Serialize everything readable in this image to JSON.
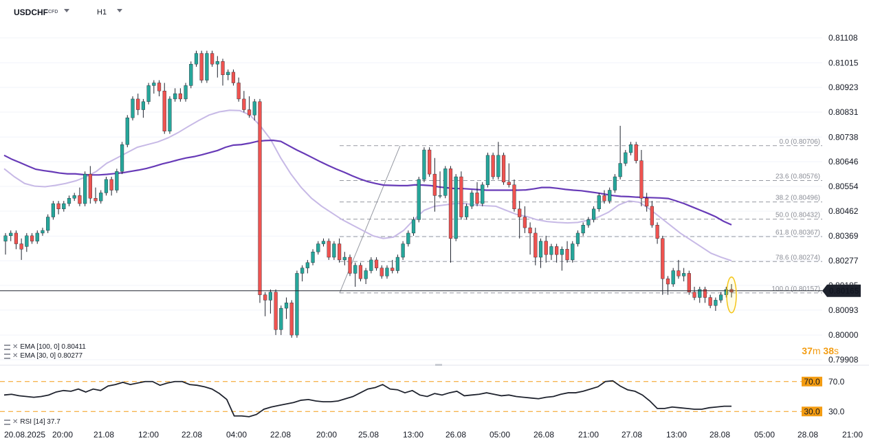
{
  "header": {
    "symbol": "USDCHF",
    "symbol_type": "CFD",
    "timeframe": "H1"
  },
  "colors": {
    "up": "#26a69a",
    "down": "#ef5350",
    "ema100": "#673ab7",
    "ema30": "#c7b9e6",
    "fib": "#9598a1",
    "rsi_line": "#1e222d",
    "rsi_levels": "#f39c12",
    "price_badge": "#1e222d"
  },
  "price_axis": {
    "labels": [
      "0.81108",
      "0.81015",
      "0.80923",
      "0.80831",
      "0.80738",
      "0.80646",
      "0.80554",
      "0.80462",
      "0.80369",
      "0.80277",
      "0.80185",
      "0.80093",
      "0.80000",
      "0.79908"
    ],
    "current_price": "0.80165"
  },
  "time_axis": {
    "labels": [
      "20.08.2025",
      "20:00",
      "21.08",
      "12:00",
      "22.08",
      "04:00",
      "22.08",
      "20:00",
      "25.08",
      "13:00",
      "26.08",
      "05:00",
      "26.08",
      "21:00",
      "27.08",
      "13:00",
      "28.08",
      "05:00",
      "28.08",
      "21:00"
    ]
  },
  "legend": {
    "ema100": "EMA  [100,  0]  0.80411",
    "ema30": "EMA  [30,  0]  0.80277",
    "rsi": "RSI  [14]  37.7"
  },
  "timer": {
    "minutes": "37",
    "m": "m",
    "seconds": "38",
    "s": "s"
  },
  "rsi_axis": {
    "level_high": "70.0",
    "level_low": "30.0"
  },
  "fib_levels": [
    {
      "label": "0.0 (0.80706)",
      "price": 0.80706
    },
    {
      "label": "23.6 (0.80576)",
      "price": 0.80576
    },
    {
      "label": "38.2 (0.80496)",
      "price": 0.80496
    },
    {
      "label": "50.0 (0.80432)",
      "price": 0.80432
    },
    {
      "label": "61.8 (0.80367)",
      "price": 0.80367
    },
    {
      "label": "78.6 (0.80274)",
      "price": 0.80274
    },
    {
      "label": "100.0 (0.80157)",
      "price": 0.80157
    }
  ],
  "chart_data": {
    "type": "candlestick",
    "symbol": "USDCHF",
    "timeframe": "H1",
    "ylim": [
      0.79908,
      0.81108
    ],
    "rsi_ylim": [
      10,
      90
    ],
    "candles": [
      {
        "o": 0.8035,
        "h": 0.8038,
        "l": 0.803,
        "c": 0.8037
      },
      {
        "o": 0.8037,
        "h": 0.8039,
        "l": 0.8035,
        "c": 0.8038
      },
      {
        "o": 0.8038,
        "h": 0.8039,
        "l": 0.8032,
        "c": 0.8034
      },
      {
        "o": 0.8034,
        "h": 0.8036,
        "l": 0.8028,
        "c": 0.8032
      },
      {
        "o": 0.8033,
        "h": 0.8038,
        "l": 0.8031,
        "c": 0.8037
      },
      {
        "o": 0.8037,
        "h": 0.8038,
        "l": 0.8034,
        "c": 0.8035
      },
      {
        "o": 0.8035,
        "h": 0.8039,
        "l": 0.8034,
        "c": 0.8038
      },
      {
        "o": 0.8038,
        "h": 0.804,
        "l": 0.8037,
        "c": 0.8039
      },
      {
        "o": 0.8039,
        "h": 0.8045,
        "l": 0.8038,
        "c": 0.8044
      },
      {
        "o": 0.8044,
        "h": 0.805,
        "l": 0.8043,
        "c": 0.8049
      },
      {
        "o": 0.8049,
        "h": 0.805,
        "l": 0.8045,
        "c": 0.8047
      },
      {
        "o": 0.8047,
        "h": 0.805,
        "l": 0.8046,
        "c": 0.8049
      },
      {
        "o": 0.8049,
        "h": 0.8052,
        "l": 0.8048,
        "c": 0.8051
      },
      {
        "o": 0.8051,
        "h": 0.8053,
        "l": 0.805,
        "c": 0.8052
      },
      {
        "o": 0.8052,
        "h": 0.8055,
        "l": 0.8048,
        "c": 0.8049
      },
      {
        "o": 0.8049,
        "h": 0.8061,
        "l": 0.8048,
        "c": 0.806
      },
      {
        "o": 0.806,
        "h": 0.8063,
        "l": 0.8049,
        "c": 0.8051
      },
      {
        "o": 0.8051,
        "h": 0.8055,
        "l": 0.8049,
        "c": 0.805
      },
      {
        "o": 0.805,
        "h": 0.8054,
        "l": 0.8049,
        "c": 0.8053
      },
      {
        "o": 0.8053,
        "h": 0.8059,
        "l": 0.8052,
        "c": 0.8058
      },
      {
        "o": 0.8058,
        "h": 0.8059,
        "l": 0.8052,
        "c": 0.8054
      },
      {
        "o": 0.8054,
        "h": 0.8062,
        "l": 0.8053,
        "c": 0.8061
      },
      {
        "o": 0.8061,
        "h": 0.8072,
        "l": 0.806,
        "c": 0.8071
      },
      {
        "o": 0.8071,
        "h": 0.8082,
        "l": 0.807,
        "c": 0.8081
      },
      {
        "o": 0.8081,
        "h": 0.8089,
        "l": 0.808,
        "c": 0.8088
      },
      {
        "o": 0.8088,
        "h": 0.809,
        "l": 0.8082,
        "c": 0.8084
      },
      {
        "o": 0.8084,
        "h": 0.8088,
        "l": 0.8081,
        "c": 0.8087
      },
      {
        "o": 0.8087,
        "h": 0.8094,
        "l": 0.8086,
        "c": 0.8093
      },
      {
        "o": 0.8093,
        "h": 0.8095,
        "l": 0.809,
        "c": 0.8094
      },
      {
        "o": 0.8094,
        "h": 0.8095,
        "l": 0.8089,
        "c": 0.8091
      },
      {
        "o": 0.8091,
        "h": 0.8094,
        "l": 0.8075,
        "c": 0.8076
      },
      {
        "o": 0.8076,
        "h": 0.8089,
        "l": 0.8075,
        "c": 0.8088
      },
      {
        "o": 0.8088,
        "h": 0.8092,
        "l": 0.8087,
        "c": 0.809
      },
      {
        "o": 0.809,
        "h": 0.8092,
        "l": 0.8087,
        "c": 0.8088
      },
      {
        "o": 0.8088,
        "h": 0.8094,
        "l": 0.8087,
        "c": 0.8093
      },
      {
        "o": 0.8093,
        "h": 0.8102,
        "l": 0.8092,
        "c": 0.8101
      },
      {
        "o": 0.8101,
        "h": 0.8106,
        "l": 0.81,
        "c": 0.8105
      },
      {
        "o": 0.8105,
        "h": 0.8106,
        "l": 0.8094,
        "c": 0.8095
      },
      {
        "o": 0.8095,
        "h": 0.8106,
        "l": 0.8094,
        "c": 0.8105
      },
      {
        "o": 0.8105,
        "h": 0.8106,
        "l": 0.81,
        "c": 0.8101
      },
      {
        "o": 0.8101,
        "h": 0.8104,
        "l": 0.8096,
        "c": 0.8102
      },
      {
        "o": 0.8102,
        "h": 0.8103,
        "l": 0.8093,
        "c": 0.8097
      },
      {
        "o": 0.8097,
        "h": 0.8099,
        "l": 0.8095,
        "c": 0.8098
      },
      {
        "o": 0.8098,
        "h": 0.8099,
        "l": 0.8093,
        "c": 0.8094
      },
      {
        "o": 0.8094,
        "h": 0.8096,
        "l": 0.8087,
        "c": 0.8088
      },
      {
        "o": 0.8088,
        "h": 0.8091,
        "l": 0.8083,
        "c": 0.8084
      },
      {
        "o": 0.8084,
        "h": 0.8089,
        "l": 0.8081,
        "c": 0.8082
      },
      {
        "o": 0.8082,
        "h": 0.8088,
        "l": 0.808,
        "c": 0.8087
      },
      {
        "o": 0.8087,
        "h": 0.8088,
        "l": 0.8012,
        "c": 0.8015
      },
      {
        "o": 0.8015,
        "h": 0.8016,
        "l": 0.8007,
        "c": 0.8013
      },
      {
        "o": 0.8013,
        "h": 0.8017,
        "l": 0.8008,
        "c": 0.8016
      },
      {
        "o": 0.8016,
        "h": 0.8017,
        "l": 0.8,
        "c": 0.8002
      },
      {
        "o": 0.8002,
        "h": 0.8011,
        "l": 0.8,
        "c": 0.801
      },
      {
        "o": 0.801,
        "h": 0.8014,
        "l": 0.8006,
        "c": 0.8012
      },
      {
        "o": 0.8012,
        "h": 0.8013,
        "l": 0.7999,
        "c": 0.8
      },
      {
        "o": 0.8,
        "h": 0.8024,
        "l": 0.7999,
        "c": 0.8023
      },
      {
        "o": 0.8023,
        "h": 0.8026,
        "l": 0.802,
        "c": 0.8025
      },
      {
        "o": 0.8025,
        "h": 0.8028,
        "l": 0.8023,
        "c": 0.8027
      },
      {
        "o": 0.8027,
        "h": 0.8032,
        "l": 0.8026,
        "c": 0.8031
      },
      {
        "o": 0.8031,
        "h": 0.8035,
        "l": 0.803,
        "c": 0.8034
      },
      {
        "o": 0.8034,
        "h": 0.8036,
        "l": 0.8033,
        "c": 0.8035
      },
      {
        "o": 0.8035,
        "h": 0.8036,
        "l": 0.8028,
        "c": 0.8029
      },
      {
        "o": 0.8029,
        "h": 0.8035,
        "l": 0.8028,
        "c": 0.8034
      },
      {
        "o": 0.8034,
        "h": 0.8036,
        "l": 0.8027,
        "c": 0.8028
      },
      {
        "o": 0.8028,
        "h": 0.8031,
        "l": 0.8026,
        "c": 0.8029
      },
      {
        "o": 0.8029,
        "h": 0.803,
        "l": 0.8022,
        "c": 0.8023
      },
      {
        "o": 0.8023,
        "h": 0.8027,
        "l": 0.8018,
        "c": 0.8026
      },
      {
        "o": 0.8026,
        "h": 0.8027,
        "l": 0.802,
        "c": 0.8021
      },
      {
        "o": 0.8021,
        "h": 0.8025,
        "l": 0.8019,
        "c": 0.8024
      },
      {
        "o": 0.8024,
        "h": 0.8029,
        "l": 0.8023,
        "c": 0.8028
      },
      {
        "o": 0.8028,
        "h": 0.8029,
        "l": 0.8024,
        "c": 0.8025
      },
      {
        "o": 0.8025,
        "h": 0.8026,
        "l": 0.8021,
        "c": 0.8022
      },
      {
        "o": 0.8022,
        "h": 0.8026,
        "l": 0.8021,
        "c": 0.8025
      },
      {
        "o": 0.8025,
        "h": 0.8028,
        "l": 0.8023,
        "c": 0.8024
      },
      {
        "o": 0.8024,
        "h": 0.803,
        "l": 0.8023,
        "c": 0.8029
      },
      {
        "o": 0.8029,
        "h": 0.8035,
        "l": 0.8028,
        "c": 0.8034
      },
      {
        "o": 0.8034,
        "h": 0.8039,
        "l": 0.8033,
        "c": 0.8038
      },
      {
        "o": 0.8038,
        "h": 0.8044,
        "l": 0.8037,
        "c": 0.8043
      },
      {
        "o": 0.8043,
        "h": 0.8059,
        "l": 0.8042,
        "c": 0.8058
      },
      {
        "o": 0.8058,
        "h": 0.807,
        "l": 0.8057,
        "c": 0.8069
      },
      {
        "o": 0.8069,
        "h": 0.807,
        "l": 0.8059,
        "c": 0.806
      },
      {
        "o": 0.806,
        "h": 0.8066,
        "l": 0.8046,
        "c": 0.8052
      },
      {
        "o": 0.8052,
        "h": 0.8061,
        "l": 0.8051,
        "c": 0.8052
      },
      {
        "o": 0.8052,
        "h": 0.8063,
        "l": 0.8051,
        "c": 0.8062
      },
      {
        "o": 0.8062,
        "h": 0.8063,
        "l": 0.8027,
        "c": 0.8036
      },
      {
        "o": 0.8036,
        "h": 0.806,
        "l": 0.8035,
        "c": 0.8059
      },
      {
        "o": 0.8059,
        "h": 0.8061,
        "l": 0.8043,
        "c": 0.8044
      },
      {
        "o": 0.8044,
        "h": 0.8049,
        "l": 0.8043,
        "c": 0.8048
      },
      {
        "o": 0.8048,
        "h": 0.8054,
        "l": 0.8047,
        "c": 0.8053
      },
      {
        "o": 0.8053,
        "h": 0.8057,
        "l": 0.8048,
        "c": 0.8049
      },
      {
        "o": 0.8049,
        "h": 0.8057,
        "l": 0.8048,
        "c": 0.8056
      },
      {
        "o": 0.8056,
        "h": 0.8068,
        "l": 0.8055,
        "c": 0.8067
      },
      {
        "o": 0.8067,
        "h": 0.8068,
        "l": 0.8058,
        "c": 0.8059
      },
      {
        "o": 0.8059,
        "h": 0.8072,
        "l": 0.8058,
        "c": 0.8067
      },
      {
        "o": 0.8067,
        "h": 0.8068,
        "l": 0.8056,
        "c": 0.8057
      },
      {
        "o": 0.8057,
        "h": 0.8064,
        "l": 0.8055,
        "c": 0.8056
      },
      {
        "o": 0.8056,
        "h": 0.8058,
        "l": 0.8046,
        "c": 0.8047
      },
      {
        "o": 0.8047,
        "h": 0.805,
        "l": 0.8036,
        "c": 0.8044
      },
      {
        "o": 0.8044,
        "h": 0.8048,
        "l": 0.8038,
        "c": 0.804
      },
      {
        "o": 0.804,
        "h": 0.8042,
        "l": 0.803,
        "c": 0.8038
      },
      {
        "o": 0.8038,
        "h": 0.804,
        "l": 0.8026,
        "c": 0.8029
      },
      {
        "o": 0.8029,
        "h": 0.8036,
        "l": 0.8025,
        "c": 0.8035
      },
      {
        "o": 0.8035,
        "h": 0.8037,
        "l": 0.8027,
        "c": 0.803
      },
      {
        "o": 0.803,
        "h": 0.8034,
        "l": 0.8028,
        "c": 0.8033
      },
      {
        "o": 0.8033,
        "h": 0.8034,
        "l": 0.8027,
        "c": 0.803
      },
      {
        "o": 0.803,
        "h": 0.8033,
        "l": 0.8024,
        "c": 0.8032
      },
      {
        "o": 0.8032,
        "h": 0.8035,
        "l": 0.8027,
        "c": 0.8028
      },
      {
        "o": 0.8028,
        "h": 0.8035,
        "l": 0.8027,
        "c": 0.8034
      },
      {
        "o": 0.8034,
        "h": 0.8039,
        "l": 0.8033,
        "c": 0.8038
      },
      {
        "o": 0.8038,
        "h": 0.8042,
        "l": 0.8037,
        "c": 0.8041
      },
      {
        "o": 0.8041,
        "h": 0.8044,
        "l": 0.804,
        "c": 0.8043
      },
      {
        "o": 0.8043,
        "h": 0.8048,
        "l": 0.8042,
        "c": 0.8047
      },
      {
        "o": 0.8047,
        "h": 0.8053,
        "l": 0.8046,
        "c": 0.8052
      },
      {
        "o": 0.8052,
        "h": 0.8054,
        "l": 0.8049,
        "c": 0.805
      },
      {
        "o": 0.805,
        "h": 0.8055,
        "l": 0.8049,
        "c": 0.8054
      },
      {
        "o": 0.8054,
        "h": 0.806,
        "l": 0.8053,
        "c": 0.8059
      },
      {
        "o": 0.8059,
        "h": 0.8078,
        "l": 0.8058,
        "c": 0.8064
      },
      {
        "o": 0.8064,
        "h": 0.8069,
        "l": 0.8063,
        "c": 0.8068
      },
      {
        "o": 0.8068,
        "h": 0.8072,
        "l": 0.8067,
        "c": 0.8071
      },
      {
        "o": 0.8071,
        "h": 0.8072,
        "l": 0.8064,
        "c": 0.8065
      },
      {
        "o": 0.8065,
        "h": 0.8069,
        "l": 0.8048,
        "c": 0.8051
      },
      {
        "o": 0.8051,
        "h": 0.8053,
        "l": 0.8046,
        "c": 0.8048
      },
      {
        "o": 0.8048,
        "h": 0.805,
        "l": 0.804,
        "c": 0.8041
      },
      {
        "o": 0.8041,
        "h": 0.8042,
        "l": 0.8034,
        "c": 0.8036
      },
      {
        "o": 0.8036,
        "h": 0.8037,
        "l": 0.8015,
        "c": 0.8021
      },
      {
        "o": 0.8021,
        "h": 0.8022,
        "l": 0.8015,
        "c": 0.8019
      },
      {
        "o": 0.8019,
        "h": 0.8025,
        "l": 0.8018,
        "c": 0.8024
      },
      {
        "o": 0.8024,
        "h": 0.8028,
        "l": 0.8021,
        "c": 0.8022
      },
      {
        "o": 0.8022,
        "h": 0.8025,
        "l": 0.802,
        "c": 0.8023
      },
      {
        "o": 0.8023,
        "h": 0.8024,
        "l": 0.8015,
        "c": 0.8016
      },
      {
        "o": 0.8016,
        "h": 0.8018,
        "l": 0.8013,
        "c": 0.8014
      },
      {
        "o": 0.8014,
        "h": 0.8018,
        "l": 0.8012,
        "c": 0.8017
      },
      {
        "o": 0.8017,
        "h": 0.8018,
        "l": 0.8012,
        "c": 0.8014
      },
      {
        "o": 0.8014,
        "h": 0.8015,
        "l": 0.801,
        "c": 0.8011
      },
      {
        "o": 0.8011,
        "h": 0.8014,
        "l": 0.8009,
        "c": 0.8013
      },
      {
        "o": 0.8013,
        "h": 0.8016,
        "l": 0.8012,
        "c": 0.8015
      },
      {
        "o": 0.8015,
        "h": 0.8018,
        "l": 0.8014,
        "c": 0.8017
      },
      {
        "o": 0.8017,
        "h": 0.8019,
        "l": 0.8014,
        "c": 0.8016
      }
    ],
    "ema100": [
      0.8067,
      0.80655,
      0.80643,
      0.8063,
      0.80618,
      0.80613,
      0.80609,
      0.80604,
      0.80601,
      0.80601,
      0.80598,
      0.80597,
      0.80597,
      0.80599,
      0.80602,
      0.80605,
      0.8061,
      0.80615,
      0.80621,
      0.80629,
      0.80638,
      0.80645,
      0.80653,
      0.8066,
      0.80665,
      0.80672,
      0.8068,
      0.80688,
      0.807,
      0.80708,
      0.8071,
      0.80715,
      0.80722,
      0.80725,
      0.80726,
      0.80722,
      0.80706,
      0.8069,
      0.80676,
      0.80661,
      0.80646,
      0.80632,
      0.80619,
      0.80607,
      0.80594,
      0.80582,
      0.80572,
      0.80565,
      0.80559,
      0.80558,
      0.80557,
      0.80557,
      0.8056,
      0.80559,
      0.80557,
      0.80552,
      0.80549,
      0.80546,
      0.80546,
      0.80544,
      0.80542,
      0.8054,
      0.8054,
      0.8054,
      0.8054,
      0.8054,
      0.80541,
      0.80545,
      0.8055,
      0.8055,
      0.80547,
      0.80543,
      0.8054,
      0.80538,
      0.80534,
      0.8053,
      0.80525,
      0.8052,
      0.80517,
      0.80516,
      0.80514,
      0.80513,
      0.80512,
      0.80511,
      0.80509,
      0.805,
      0.8049,
      0.80478,
      0.80466,
      0.80454,
      0.80441,
      0.80424,
      0.80411
    ],
    "ema30": [
      0.8062,
      0.8059,
      0.80565,
      0.80555,
      0.80553,
      0.80558,
      0.80565,
      0.80575,
      0.8059,
      0.8061,
      0.8064,
      0.8066,
      0.8068,
      0.807,
      0.8071,
      0.8072,
      0.80735,
      0.80755,
      0.80778,
      0.808,
      0.8082,
      0.80832,
      0.80838,
      0.80837,
      0.8082,
      0.8078,
      0.8073,
      0.8066,
      0.806,
      0.8055,
      0.8051,
      0.8048,
      0.80455,
      0.8043,
      0.8041,
      0.8039,
      0.8037,
      0.8036,
      0.80365,
      0.8039,
      0.8043,
      0.80465,
      0.8048,
      0.80485,
      0.8049,
      0.8049,
      0.80485,
      0.80482,
      0.8048,
      0.80465,
      0.8045,
      0.80442,
      0.8043,
      0.80423,
      0.8042,
      0.80418,
      0.8042,
      0.80428,
      0.8044,
      0.80458,
      0.80485,
      0.805,
      0.80495,
      0.8047,
      0.8044,
      0.8041,
      0.8038,
      0.80355,
      0.8033,
      0.80305,
      0.8029,
      0.80277
    ],
    "rsi": [
      52,
      53,
      51,
      50,
      49,
      50,
      52,
      56,
      58,
      57,
      60,
      56,
      60,
      58,
      64,
      66,
      69,
      66,
      68,
      70,
      70,
      65,
      68,
      70,
      70,
      66,
      65,
      63,
      60,
      54,
      46,
      24,
      24,
      23,
      26,
      33,
      36,
      38,
      40,
      42,
      45,
      46,
      44,
      43,
      43,
      44,
      47,
      50,
      55,
      60,
      62,
      66,
      60,
      59,
      55,
      58,
      52,
      50,
      54,
      52,
      55,
      57,
      51,
      52,
      53,
      55,
      53,
      51,
      52,
      50,
      49,
      48,
      47,
      49,
      50,
      53,
      55,
      55,
      57,
      60,
      63,
      70,
      71,
      64,
      59,
      57,
      52,
      44,
      34,
      34,
      36,
      35,
      34,
      33,
      33,
      35,
      36,
      37,
      37
    ]
  }
}
